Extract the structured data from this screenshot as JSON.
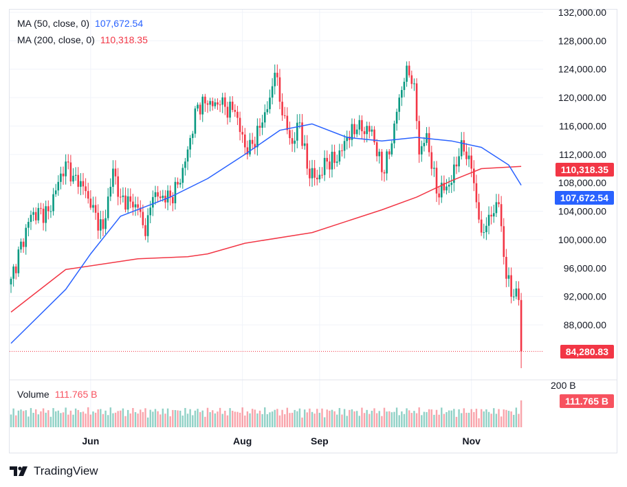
{
  "legend": {
    "ma50_label": "MA (50, close, 0)",
    "ma50_value": "107,672.54",
    "ma200_label": "MA (200, close, 0)",
    "ma200_value": "110,318.35",
    "volume_label": "Volume",
    "volume_value": "111.765 B"
  },
  "tags": {
    "ma200": "110,318.35",
    "ma50": "107,672.54",
    "last_price": "84,280.83",
    "volume": "111.765 B"
  },
  "volume_axis_label": "200 B",
  "brand": "TradingView",
  "colors": {
    "up": "#089981",
    "down": "#f23645",
    "ma50": "#2962ff",
    "ma200": "#f23645"
  },
  "chart_data": {
    "type": "candlestick",
    "price_axis": {
      "ticks": [
        "88,000.00",
        "92,000.00",
        "96,000.00",
        "100,000.00",
        "104,000.00",
        "108,000.00",
        "112,000.00",
        "116,000.00",
        "120,000.00",
        "124,000.00",
        "128,000.00",
        "132,000.00"
      ],
      "range": [
        80000,
        133000
      ]
    },
    "time_axis": {
      "ticks": [
        {
          "label": "Jun",
          "date": "2025-06-01"
        },
        {
          "label": "Aug",
          "date": "2025-08-01"
        },
        {
          "label": "Sep",
          "date": "2025-09-01"
        },
        {
          "label": "Nov",
          "date": "2025-11-01"
        }
      ]
    },
    "grid": true,
    "approx_closes": [
      [
        "2025-04-30",
        94500
      ],
      [
        "2025-05-08",
        103500
      ],
      [
        "2025-05-15",
        104000
      ],
      [
        "2025-05-22",
        111000
      ],
      [
        "2025-05-25",
        109000
      ],
      [
        "2025-05-29",
        107500
      ],
      [
        "2025-06-01",
        104500
      ],
      [
        "2025-06-06",
        101500
      ],
      [
        "2025-06-10",
        110000
      ],
      [
        "2025-06-13",
        106000
      ],
      [
        "2025-06-20",
        104500
      ],
      [
        "2025-06-23",
        100500
      ],
      [
        "2025-06-26",
        106000
      ],
      [
        "2025-07-03",
        106000
      ],
      [
        "2025-07-07",
        108000
      ],
      [
        "2025-07-09",
        111000
      ],
      [
        "2025-07-14",
        119000
      ],
      [
        "2025-07-18",
        119000
      ],
      [
        "2025-07-23",
        119000
      ],
      [
        "2025-07-29",
        118000
      ],
      [
        "2025-08-02",
        113000
      ],
      [
        "2025-08-03",
        112000
      ],
      [
        "2025-08-09",
        116500
      ],
      [
        "2025-08-12",
        120000
      ],
      [
        "2025-08-14",
        123500
      ],
      [
        "2025-08-17",
        117500
      ],
      [
        "2025-08-21",
        113500
      ],
      [
        "2025-08-24",
        116500
      ],
      [
        "2025-08-27",
        110000
      ],
      [
        "2025-08-31",
        108500
      ],
      [
        "2025-09-04",
        111000
      ],
      [
        "2025-09-08",
        111000
      ],
      [
        "2025-09-12",
        114500
      ],
      [
        "2025-09-16",
        115500
      ],
      [
        "2025-09-22",
        115500
      ],
      [
        "2025-09-26",
        109500
      ],
      [
        "2025-09-29",
        112000
      ],
      [
        "2025-10-02",
        118000
      ],
      [
        "2025-10-03",
        120000
      ],
      [
        "2025-10-06",
        124500
      ],
      [
        "2025-10-09",
        122000
      ],
      [
        "2025-10-11",
        112000
      ],
      [
        "2025-10-14",
        115000
      ],
      [
        "2025-10-18",
        106500
      ],
      [
        "2025-10-24",
        108000
      ],
      [
        "2025-10-28",
        114000
      ],
      [
        "2025-11-01",
        110000
      ],
      [
        "2025-11-05",
        101000
      ],
      [
        "2025-11-08",
        103500
      ],
      [
        "2025-11-12",
        105000
      ],
      [
        "2025-11-15",
        94500
      ],
      [
        "2025-11-18",
        92000
      ],
      [
        "2025-11-20",
        91500
      ],
      [
        "2025-11-21",
        84280.83
      ]
    ],
    "ma50": [
      [
        "2025-04-30",
        85400
      ],
      [
        "2025-05-22",
        93000
      ],
      [
        "2025-06-01",
        98000
      ],
      [
        "2025-06-13",
        103300
      ],
      [
        "2025-07-03",
        106000
      ],
      [
        "2025-07-18",
        108600
      ],
      [
        "2025-08-02",
        112000
      ],
      [
        "2025-08-16",
        115400
      ],
      [
        "2025-08-29",
        116300
      ],
      [
        "2025-09-12",
        114400
      ],
      [
        "2025-09-26",
        113900
      ],
      [
        "2025-10-10",
        114400
      ],
      [
        "2025-10-24",
        113900
      ],
      [
        "2025-11-05",
        113000
      ],
      [
        "2025-11-16",
        110500
      ],
      [
        "2025-11-21",
        107672.54
      ]
    ],
    "ma200": [
      [
        "2025-04-30",
        89800
      ],
      [
        "2025-05-22",
        95800
      ],
      [
        "2025-06-20",
        97300
      ],
      [
        "2025-07-10",
        97600
      ],
      [
        "2025-07-18",
        98000
      ],
      [
        "2025-08-02",
        99500
      ],
      [
        "2025-08-29",
        101000
      ],
      [
        "2025-09-26",
        104200
      ],
      [
        "2025-10-10",
        106000
      ],
      [
        "2025-10-24",
        108300
      ],
      [
        "2025-11-05",
        110000
      ],
      [
        "2025-11-21",
        110318.35
      ]
    ],
    "last_price": 84280.83,
    "last_volume_b": 111.765,
    "volume_axis_max_b": 200
  }
}
